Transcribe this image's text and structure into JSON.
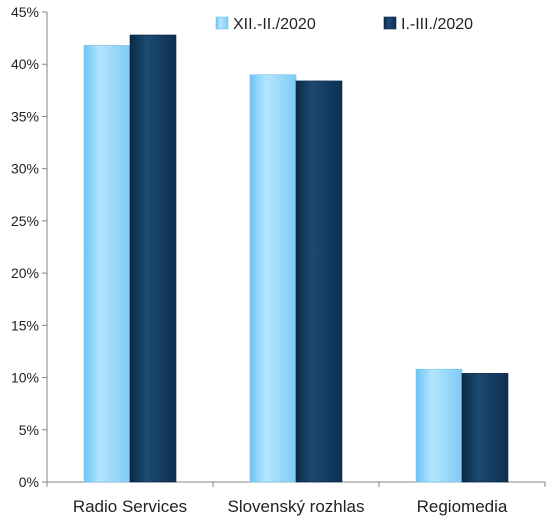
{
  "chart_data": {
    "type": "bar",
    "categories": [
      "Radio Services",
      "Slovenský rozhlas",
      "Regiomedia"
    ],
    "series": [
      {
        "name": "XII.-II./2020",
        "values": [
          0.418,
          0.39,
          0.108
        ],
        "color": "#8fd3ff"
      },
      {
        "name": "I.-III./2020",
        "values": [
          0.428,
          0.384,
          0.104
        ],
        "color": "#13395c"
      }
    ],
    "yticks": [
      "0%",
      "5%",
      "10%",
      "15%",
      "20%",
      "25%",
      "30%",
      "35%",
      "40%",
      "45%"
    ],
    "ylim": [
      0,
      0.45
    ],
    "grid": false,
    "legend_position": "top-right"
  }
}
